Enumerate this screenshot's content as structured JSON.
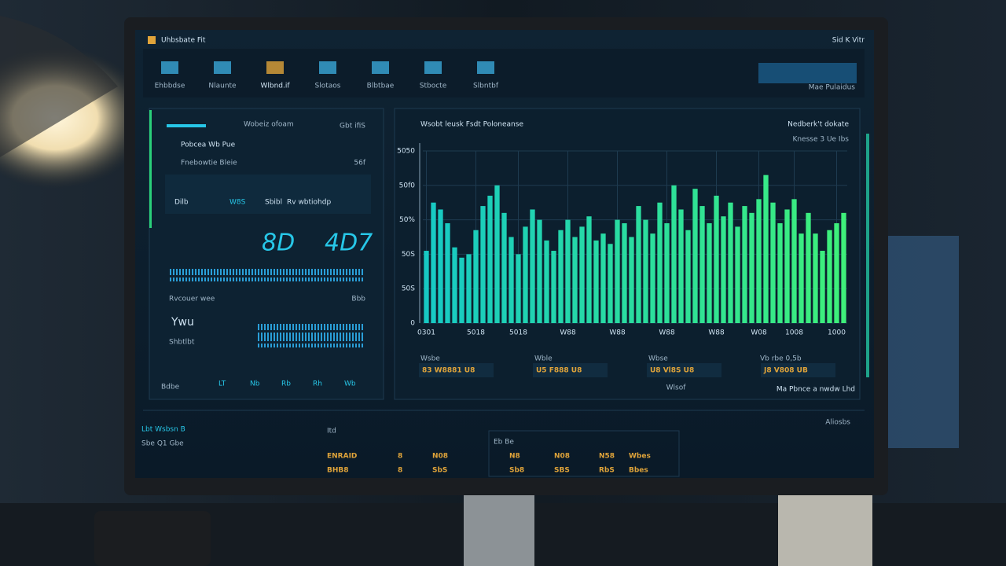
{
  "header": {
    "app_title": "Uhbsbate Fit",
    "top_right": "Sid K Vitr"
  },
  "nav": [
    "Ehbbdse",
    "Nlaunte",
    "Wlbnd.if",
    "Slotaos",
    "Blbtbae",
    "Stbocte",
    "Slbntbf"
  ],
  "nav_right": "Mae Pulaidus",
  "left_panel": {
    "rows": [
      "Wobeiz ofoam",
      "Pobcea Wb Pue",
      "Fnebowtie Bleie"
    ],
    "row_values": [
      "Gbt ifiS",
      "",
      "56f"
    ],
    "chips": [
      "Dilb",
      "W8S",
      "Sbibl"
    ],
    "status": "Rv wbtiohdp",
    "big_numbers": [
      "8D",
      "4D7"
    ],
    "spark_label": "Rvcouer wee",
    "spark_value": "Bbb",
    "mini_title": "Ywu",
    "mini_sub": "Shbtlbt",
    "foot_left": "Bdbe",
    "foot_values": [
      "LT",
      "Nb",
      "Rb",
      "Rh",
      "Wb"
    ]
  },
  "chart_header": {
    "right_title": "Nedberk't dokate",
    "right_sub": "Knesse 3 Ue Ibs"
  },
  "stats": [
    "83 W8881 U8",
    "U5 F888 U8",
    "U8 Vl8S U8",
    "J8 V808 UB"
  ],
  "stat_labels": [
    "Wsbe",
    "Wble",
    "Wbse",
    "Vb rbe 0,5b"
  ],
  "chart_note": "Wlsof",
  "chart_foot": "Ma Pbnce a nwdw Lhd",
  "footer": {
    "left_title": "Lbt Wsbsn B",
    "left_sub": "Sbe Q1 Gbe",
    "right": "Aliosbs"
  },
  "bottom_table": {
    "header": [
      "Itd",
      "Eb Be"
    ],
    "rows": [
      [
        "ENRAID",
        "8",
        "N08",
        "N8",
        "N08",
        "N58",
        "Wbes"
      ],
      [
        "BHB8",
        "8",
        "SbS",
        "Sb8",
        "SBS",
        "RbS",
        "Bbes"
      ]
    ]
  },
  "chart_data": {
    "type": "bar",
    "title": "Wsobt leusk Fsdt Poloneanse",
    "colors": [
      "#17c9c4",
      "#3ef07a"
    ],
    "grid": true,
    "ylim": [
      0,
      5
    ],
    "yticks": [
      {
        "value": 0,
        "label": "0"
      },
      {
        "value": 1,
        "label": "50S"
      },
      {
        "value": 2,
        "label": "50S"
      },
      {
        "value": 3,
        "label": "50%"
      },
      {
        "value": 4,
        "label": "50f0"
      },
      {
        "value": 5,
        "label": "5050"
      }
    ],
    "categories": [
      "0301",
      null,
      null,
      null,
      null,
      null,
      null,
      "5018",
      null,
      null,
      null,
      null,
      null,
      "5018",
      null,
      null,
      null,
      null,
      null,
      null,
      "W88",
      null,
      null,
      null,
      null,
      null,
      null,
      "W88",
      null,
      null,
      null,
      null,
      null,
      null,
      "W88",
      null,
      null,
      null,
      null,
      null,
      null,
      "W88",
      null,
      null,
      null,
      null,
      null,
      "W08",
      null,
      null,
      null,
      null,
      "1008",
      null,
      null,
      null,
      null,
      null,
      "1000",
      null
    ],
    "values": [
      2.1,
      3.5,
      3.3,
      2.9,
      2.2,
      1.9,
      2.0,
      2.7,
      3.4,
      3.7,
      4.0,
      3.2,
      2.5,
      2.0,
      2.8,
      3.3,
      3.0,
      2.4,
      2.1,
      2.7,
      3.0,
      2.5,
      2.8,
      3.1,
      2.4,
      2.6,
      2.3,
      3.0,
      2.9,
      2.5,
      3.4,
      3.0,
      2.6,
      3.5,
      2.9,
      4.0,
      3.3,
      2.7,
      3.9,
      3.4,
      2.9,
      3.7,
      3.1,
      3.5,
      2.8,
      3.4,
      3.2,
      3.6,
      4.3,
      3.5,
      2.9,
      3.3,
      3.6,
      2.6,
      3.2,
      2.6,
      2.1,
      2.7,
      2.9,
      3.2
    ]
  }
}
